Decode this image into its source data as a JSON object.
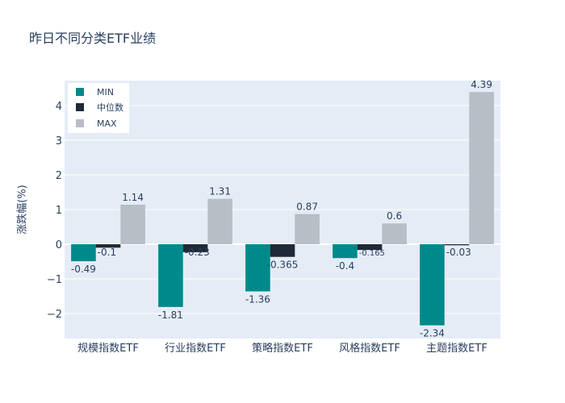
{
  "chart_data": {
    "type": "bar",
    "title": "昨日不同分类ETF业绩",
    "xlabel": "",
    "ylabel": "涨跌幅(%)",
    "categories": [
      "规模指数ETF",
      "行业指数ETF",
      "策略指数ETF",
      "风格指数ETF",
      "主题指数ETF"
    ],
    "series": [
      {
        "name": "MIN",
        "color": "#00898a",
        "values": [
          -0.49,
          -1.81,
          -1.36,
          -0.4,
          -2.34
        ],
        "labels": [
          "-0.49",
          "-1.81",
          "-1.36",
          "-0.4",
          "-2.34"
        ]
      },
      {
        "name": "中位数",
        "color": "#1f2937",
        "values": [
          -0.1,
          -0.23,
          -0.365,
          -0.165,
          -0.03
        ],
        "labels": [
          "-0.1",
          "-0.23",
          "-0.365",
          "-0.165",
          "-0.03"
        ]
      },
      {
        "name": "MAX",
        "color": "#b8bec6",
        "values": [
          1.14,
          1.31,
          0.87,
          0.6,
          4.39
        ],
        "labels": [
          "1.14",
          "1.31",
          "0.87",
          "0.6",
          "4.39"
        ]
      }
    ],
    "yticks": [
      "−2",
      "−1",
      "0",
      "1",
      "2",
      "3",
      "4"
    ],
    "ylim": [
      -2.72,
      4.72
    ],
    "grid": true,
    "legend_position": "top-left",
    "plot_bg": "#e5ecf6"
  }
}
